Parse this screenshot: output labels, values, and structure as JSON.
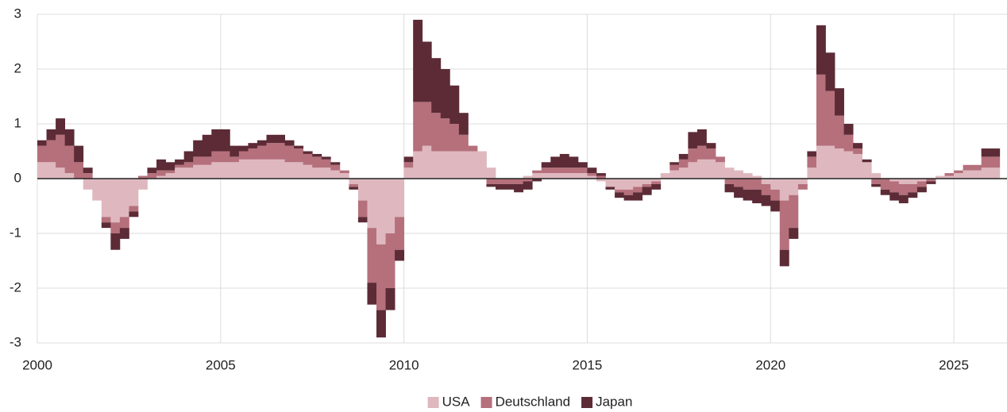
{
  "chart_data": {
    "type": "bar",
    "stacked": true,
    "x": [
      2000,
      2000.25,
      2000.5,
      2000.75,
      2001,
      2001.25,
      2001.5,
      2001.75,
      2002,
      2002.25,
      2002.5,
      2002.75,
      2003,
      2003.25,
      2003.5,
      2003.75,
      2004,
      2004.25,
      2004.5,
      2004.75,
      2005,
      2005.25,
      2005.5,
      2005.75,
      2006,
      2006.25,
      2006.5,
      2006.75,
      2007,
      2007.25,
      2007.5,
      2007.75,
      2008,
      2008.25,
      2008.5,
      2008.75,
      2009,
      2009.25,
      2009.5,
      2009.75,
      2010,
      2010.25,
      2010.5,
      2010.75,
      2011,
      2011.25,
      2011.5,
      2011.75,
      2012,
      2012.25,
      2012.5,
      2012.75,
      2013,
      2013.25,
      2013.5,
      2013.75,
      2014,
      2014.25,
      2014.5,
      2014.75,
      2015,
      2015.25,
      2015.5,
      2015.75,
      2016,
      2016.25,
      2016.5,
      2016.75,
      2017,
      2017.25,
      2017.5,
      2017.75,
      2018,
      2018.25,
      2018.5,
      2018.75,
      2019,
      2019.25,
      2019.5,
      2019.75,
      2020,
      2020.25,
      2020.5,
      2020.75,
      2021,
      2021.25,
      2021.5,
      2021.75,
      2022,
      2022.25,
      2022.5,
      2022.75,
      2023,
      2023.25,
      2023.5,
      2023.75,
      2024,
      2024.25,
      2024.5,
      2024.75,
      2025,
      2025.25,
      2025.5,
      2025.75,
      2026
    ],
    "series": [
      {
        "name": "USA",
        "color": "#dfb8bf",
        "values": [
          0.3,
          0.3,
          0.2,
          0.1,
          0,
          -0.2,
          -0.4,
          -0.7,
          -0.8,
          -0.7,
          -0.5,
          -0.2,
          0,
          0.05,
          0.1,
          0.2,
          0.2,
          0.25,
          0.25,
          0.3,
          0.3,
          0.3,
          0.35,
          0.35,
          0.35,
          0.35,
          0.35,
          0.3,
          0.3,
          0.25,
          0.2,
          0.2,
          0.15,
          0.1,
          -0.1,
          -0.4,
          -0.9,
          -1.2,
          -1,
          -0.7,
          0.2,
          0.5,
          0.6,
          0.5,
          0.5,
          0.5,
          0.5,
          0.5,
          0.5,
          0.2,
          0,
          0,
          0,
          0.05,
          0.1,
          0.1,
          0.1,
          0.1,
          0.1,
          0.1,
          0.05,
          -0.05,
          -0.15,
          -0.2,
          -0.2,
          -0.15,
          -0.1,
          -0.05,
          0.1,
          0.15,
          0.2,
          0.3,
          0.35,
          0.35,
          0.3,
          0.2,
          0.15,
          0.1,
          0.05,
          -0.1,
          -0.2,
          -0.4,
          -0.3,
          -0.1,
          0.2,
          0.6,
          0.6,
          0.55,
          0.5,
          0.45,
          0.3,
          0.1,
          0,
          -0.05,
          -0.1,
          -0.1,
          -0.05,
          0,
          0.05,
          0.05,
          0.1,
          0.15,
          0.15,
          0.2,
          0.2
        ]
      },
      {
        "name": "Deutschland",
        "color": "#b5707c",
        "values": [
          0.3,
          0.4,
          0.6,
          0.5,
          0.3,
          0.1,
          0,
          -0.1,
          -0.2,
          -0.2,
          -0.1,
          0.05,
          0.1,
          0.1,
          0.05,
          0.05,
          0.1,
          0.15,
          0.15,
          0.2,
          0.2,
          0.1,
          0.15,
          0.2,
          0.25,
          0.3,
          0.3,
          0.3,
          0.25,
          0.2,
          0.2,
          0.15,
          0.1,
          0.05,
          -0.05,
          -0.3,
          -1,
          -1.2,
          -1,
          -0.6,
          0.1,
          0.9,
          0.8,
          0.7,
          0.6,
          0.5,
          0.3,
          0.1,
          0,
          -0.1,
          -0.1,
          -0.1,
          -0.1,
          -0.05,
          0.05,
          0.1,
          0.1,
          0.1,
          0.1,
          0.1,
          0.05,
          0.05,
          0,
          -0.05,
          -0.1,
          -0.1,
          -0.05,
          -0.05,
          0,
          0.1,
          0.15,
          0.25,
          0.25,
          0.2,
          0.1,
          -0.1,
          -0.15,
          -0.2,
          -0.2,
          -0.2,
          -0.2,
          -0.9,
          -0.6,
          -0.1,
          0.2,
          1.3,
          1,
          0.6,
          0.3,
          0.1,
          0,
          -0.1,
          -0.2,
          -0.2,
          -0.2,
          -0.15,
          -0.1,
          -0.05,
          0,
          0.05,
          0.05,
          0.1,
          0.1,
          0.2,
          0.2
        ]
      },
      {
        "name": "Japan",
        "color": "#5c2b36",
        "values": [
          0.1,
          0.2,
          0.3,
          0.3,
          0.3,
          0.1,
          0,
          -0.1,
          -0.3,
          -0.2,
          -0.1,
          0,
          0.1,
          0.2,
          0.15,
          0.1,
          0.2,
          0.3,
          0.4,
          0.4,
          0.4,
          0.2,
          0.1,
          0.1,
          0.1,
          0.15,
          0.15,
          0.1,
          0.05,
          0.05,
          0.05,
          0.05,
          0.05,
          0,
          -0.05,
          -0.1,
          -0.4,
          -0.5,
          -0.4,
          -0.2,
          0.1,
          1.5,
          1.1,
          1,
          0.9,
          0.7,
          0.4,
          0,
          0,
          -0.05,
          -0.1,
          -0.1,
          -0.15,
          -0.15,
          -0.05,
          0.1,
          0.2,
          0.25,
          0.2,
          0.1,
          0.1,
          0.05,
          -0.05,
          -0.1,
          -0.1,
          -0.15,
          -0.15,
          -0.1,
          0,
          0.05,
          0.1,
          0.3,
          0.3,
          0.1,
          0,
          -0.15,
          -0.2,
          -0.2,
          -0.25,
          -0.2,
          -0.2,
          -0.3,
          -0.2,
          0,
          0.1,
          0.9,
          0.7,
          0.5,
          0.2,
          0.1,
          0.05,
          -0.05,
          -0.1,
          -0.15,
          -0.15,
          -0.1,
          -0.1,
          -0.05,
          0,
          0,
          0,
          0,
          0,
          0.15,
          0.15
        ]
      }
    ],
    "bar_width": 0.25,
    "xlim": [
      2000,
      2026.45
    ],
    "xticks": [
      2000,
      2005,
      2010,
      2015,
      2020,
      2025
    ],
    "ylim": [
      -3,
      3
    ],
    "yticks": [
      -3,
      -2,
      -1,
      0,
      1,
      2,
      3
    ],
    "grid": true,
    "legend": "bottom"
  }
}
